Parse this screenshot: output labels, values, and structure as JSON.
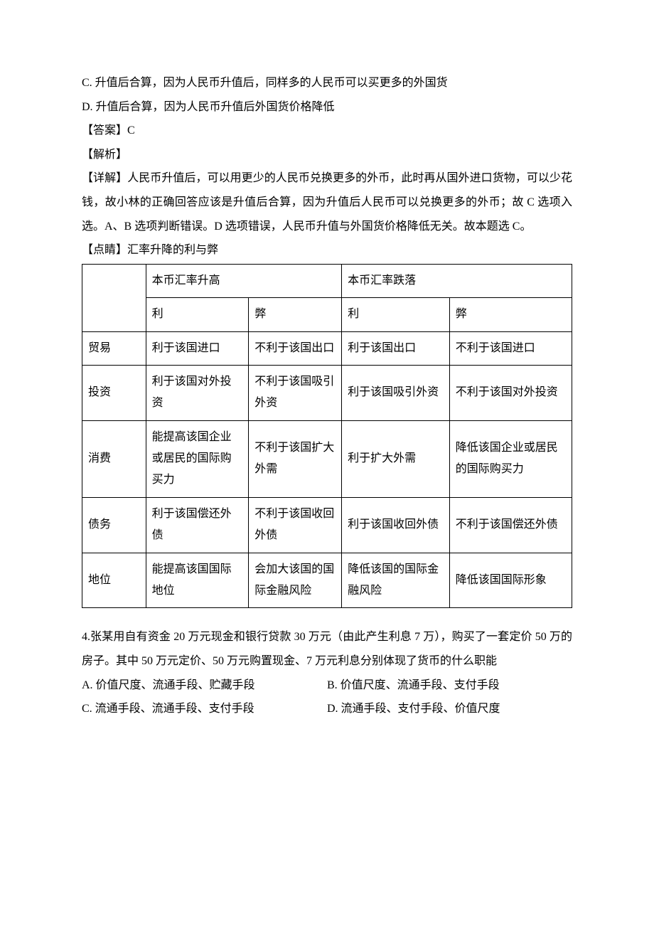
{
  "options_top": {
    "c": "C. 升值后合算，因为人民币升值后，同样多的人民币可以买更多的外国货",
    "d": "D. 升值后合算，因为人民币升值后外国货价格降低"
  },
  "answer_label": "【答案】C",
  "analysis_label": "【解析】",
  "detail_text": "【详解】人民币升值后，可以用更少的人民币兑换更多的外币，此时再从国外进口货物，可以少花钱，故小林的正确回答应该是升值后合算，因为升值后人民币可以兑换更多的外币；故 C 选项入选。A、B 选项判断错误。D 选项错误，人民币升值与外国货价格降低无关。故本题选 C。",
  "dianjing_label": "【点睛】汇率升降的利与弊",
  "table": {
    "head1": {
      "up": "本币汇率升高",
      "down": "本币汇率跌落"
    },
    "head2": {
      "up_li": "利",
      "up_bi": "弊",
      "down_li": "利",
      "down_bi": "弊"
    },
    "rows": [
      {
        "label": "贸易",
        "up_li": "利于该国进口",
        "up_bi": "不利于该国出口",
        "down_li": "利于该国出口",
        "down_bi": "不利于该国进口"
      },
      {
        "label": "投资",
        "up_li": "利于该国对外投资",
        "up_bi": "不利于该国吸引外资",
        "down_li": "利于该国吸引外资",
        "down_bi": "不利于该国对外投资"
      },
      {
        "label": "消费",
        "up_li": "能提高该国企业或居民的国际购买力",
        "up_bi": "不利于该国扩大外需",
        "down_li": "利于扩大外需",
        "down_bi": "降低该国企业或居民的国际购买力"
      },
      {
        "label": "债务",
        "up_li": "利于该国偿还外债",
        "up_bi": "不利于该国收回外债",
        "down_li": "利于该国收回外债",
        "down_bi": "不利于该国偿还外债"
      },
      {
        "label": "地位",
        "up_li": "能提高该国国际地位",
        "up_bi": "会加大该国的国际金融风险",
        "down_li": "降低该国的国际金融风险",
        "down_bi": "降低该国国际形象"
      }
    ]
  },
  "q4": {
    "stem": "4.张某用自有资金 20 万元现金和银行贷款 30 万元（由此产生利息 7 万），购买了一套定价 50 万的房子。其中 50 万元定价、50 万元购置现金、7 万元利息分别体现了货币的什么职能",
    "a": "A. 价值尺度、流通手段、贮藏手段",
    "b": "B. 价值尺度、流通手段、支付手段",
    "c": "C. 流通手段、流通手段、支付手段",
    "d": "D. 流通手段、支付手段、价值尺度"
  }
}
